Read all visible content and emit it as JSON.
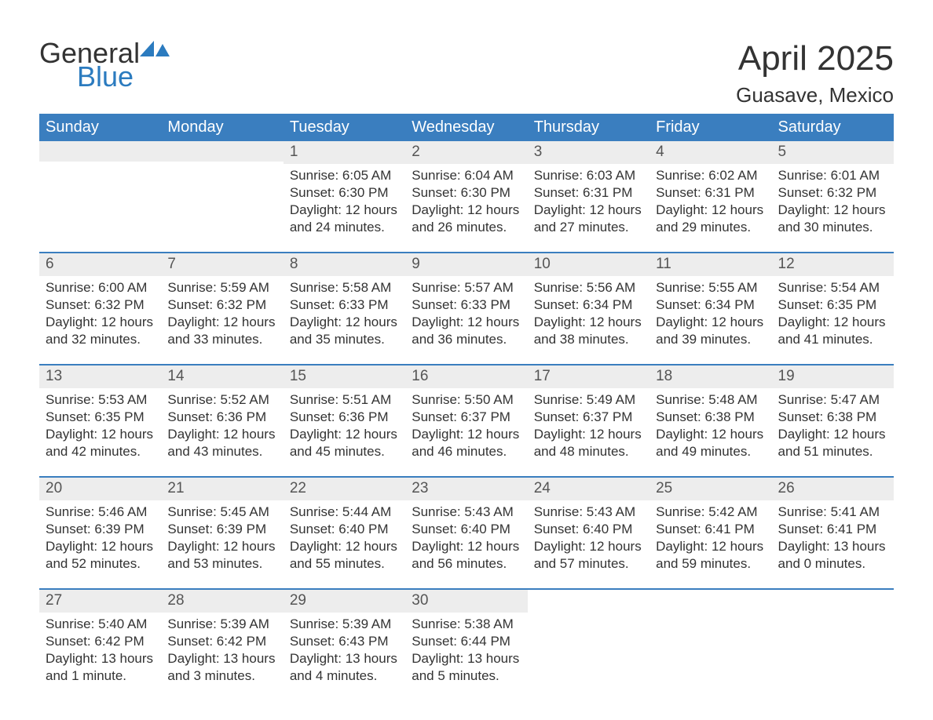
{
  "logo": {
    "text1": "General",
    "text2": "Blue",
    "icon_color": "#2b7bbf",
    "text1_color": "#333333",
    "text2_color": "#2b7bbf"
  },
  "title": "April 2025",
  "location": "Guasave, Mexico",
  "header_bg": "#3a7ebf",
  "header_text_color": "#ffffff",
  "daynum_bg": "#ededed",
  "week_border_color": "#3a7ebf",
  "text_color": "#333333",
  "font_family": "Arial, Helvetica, sans-serif",
  "day_headers": [
    "Sunday",
    "Monday",
    "Tuesday",
    "Wednesday",
    "Thursday",
    "Friday",
    "Saturday"
  ],
  "weeks": [
    [
      null,
      null,
      {
        "n": "1",
        "sunrise": "Sunrise: 6:05 AM",
        "sunset": "Sunset: 6:30 PM",
        "daylight": "Daylight: 12 hours and 24 minutes."
      },
      {
        "n": "2",
        "sunrise": "Sunrise: 6:04 AM",
        "sunset": "Sunset: 6:30 PM",
        "daylight": "Daylight: 12 hours and 26 minutes."
      },
      {
        "n": "3",
        "sunrise": "Sunrise: 6:03 AM",
        "sunset": "Sunset: 6:31 PM",
        "daylight": "Daylight: 12 hours and 27 minutes."
      },
      {
        "n": "4",
        "sunrise": "Sunrise: 6:02 AM",
        "sunset": "Sunset: 6:31 PM",
        "daylight": "Daylight: 12 hours and 29 minutes."
      },
      {
        "n": "5",
        "sunrise": "Sunrise: 6:01 AM",
        "sunset": "Sunset: 6:32 PM",
        "daylight": "Daylight: 12 hours and 30 minutes."
      }
    ],
    [
      {
        "n": "6",
        "sunrise": "Sunrise: 6:00 AM",
        "sunset": "Sunset: 6:32 PM",
        "daylight": "Daylight: 12 hours and 32 minutes."
      },
      {
        "n": "7",
        "sunrise": "Sunrise: 5:59 AM",
        "sunset": "Sunset: 6:32 PM",
        "daylight": "Daylight: 12 hours and 33 minutes."
      },
      {
        "n": "8",
        "sunrise": "Sunrise: 5:58 AM",
        "sunset": "Sunset: 6:33 PM",
        "daylight": "Daylight: 12 hours and 35 minutes."
      },
      {
        "n": "9",
        "sunrise": "Sunrise: 5:57 AM",
        "sunset": "Sunset: 6:33 PM",
        "daylight": "Daylight: 12 hours and 36 minutes."
      },
      {
        "n": "10",
        "sunrise": "Sunrise: 5:56 AM",
        "sunset": "Sunset: 6:34 PM",
        "daylight": "Daylight: 12 hours and 38 minutes."
      },
      {
        "n": "11",
        "sunrise": "Sunrise: 5:55 AM",
        "sunset": "Sunset: 6:34 PM",
        "daylight": "Daylight: 12 hours and 39 minutes."
      },
      {
        "n": "12",
        "sunrise": "Sunrise: 5:54 AM",
        "sunset": "Sunset: 6:35 PM",
        "daylight": "Daylight: 12 hours and 41 minutes."
      }
    ],
    [
      {
        "n": "13",
        "sunrise": "Sunrise: 5:53 AM",
        "sunset": "Sunset: 6:35 PM",
        "daylight": "Daylight: 12 hours and 42 minutes."
      },
      {
        "n": "14",
        "sunrise": "Sunrise: 5:52 AM",
        "sunset": "Sunset: 6:36 PM",
        "daylight": "Daylight: 12 hours and 43 minutes."
      },
      {
        "n": "15",
        "sunrise": "Sunrise: 5:51 AM",
        "sunset": "Sunset: 6:36 PM",
        "daylight": "Daylight: 12 hours and 45 minutes."
      },
      {
        "n": "16",
        "sunrise": "Sunrise: 5:50 AM",
        "sunset": "Sunset: 6:37 PM",
        "daylight": "Daylight: 12 hours and 46 minutes."
      },
      {
        "n": "17",
        "sunrise": "Sunrise: 5:49 AM",
        "sunset": "Sunset: 6:37 PM",
        "daylight": "Daylight: 12 hours and 48 minutes."
      },
      {
        "n": "18",
        "sunrise": "Sunrise: 5:48 AM",
        "sunset": "Sunset: 6:38 PM",
        "daylight": "Daylight: 12 hours and 49 minutes."
      },
      {
        "n": "19",
        "sunrise": "Sunrise: 5:47 AM",
        "sunset": "Sunset: 6:38 PM",
        "daylight": "Daylight: 12 hours and 51 minutes."
      }
    ],
    [
      {
        "n": "20",
        "sunrise": "Sunrise: 5:46 AM",
        "sunset": "Sunset: 6:39 PM",
        "daylight": "Daylight: 12 hours and 52 minutes."
      },
      {
        "n": "21",
        "sunrise": "Sunrise: 5:45 AM",
        "sunset": "Sunset: 6:39 PM",
        "daylight": "Daylight: 12 hours and 53 minutes."
      },
      {
        "n": "22",
        "sunrise": "Sunrise: 5:44 AM",
        "sunset": "Sunset: 6:40 PM",
        "daylight": "Daylight: 12 hours and 55 minutes."
      },
      {
        "n": "23",
        "sunrise": "Sunrise: 5:43 AM",
        "sunset": "Sunset: 6:40 PM",
        "daylight": "Daylight: 12 hours and 56 minutes."
      },
      {
        "n": "24",
        "sunrise": "Sunrise: 5:43 AM",
        "sunset": "Sunset: 6:40 PM",
        "daylight": "Daylight: 12 hours and 57 minutes."
      },
      {
        "n": "25",
        "sunrise": "Sunrise: 5:42 AM",
        "sunset": "Sunset: 6:41 PM",
        "daylight": "Daylight: 12 hours and 59 minutes."
      },
      {
        "n": "26",
        "sunrise": "Sunrise: 5:41 AM",
        "sunset": "Sunset: 6:41 PM",
        "daylight": "Daylight: 13 hours and 0 minutes."
      }
    ],
    [
      {
        "n": "27",
        "sunrise": "Sunrise: 5:40 AM",
        "sunset": "Sunset: 6:42 PM",
        "daylight": "Daylight: 13 hours and 1 minute."
      },
      {
        "n": "28",
        "sunrise": "Sunrise: 5:39 AM",
        "sunset": "Sunset: 6:42 PM",
        "daylight": "Daylight: 13 hours and 3 minutes."
      },
      {
        "n": "29",
        "sunrise": "Sunrise: 5:39 AM",
        "sunset": "Sunset: 6:43 PM",
        "daylight": "Daylight: 13 hours and 4 minutes."
      },
      {
        "n": "30",
        "sunrise": "Sunrise: 5:38 AM",
        "sunset": "Sunset: 6:44 PM",
        "daylight": "Daylight: 13 hours and 5 minutes."
      },
      null,
      null,
      null
    ]
  ]
}
